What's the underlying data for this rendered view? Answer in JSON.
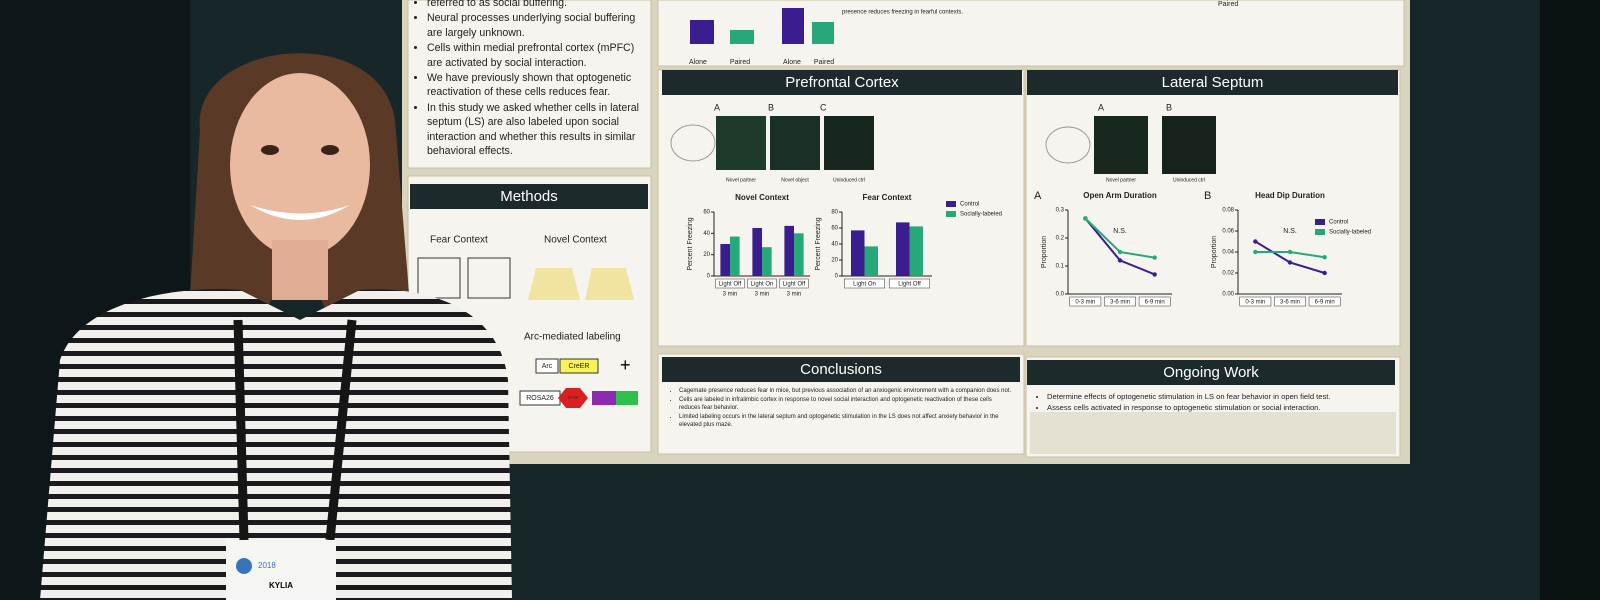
{
  "intro": {
    "bullets": [
      "referred to as social buffering.",
      "Neural processes underlying social buffering are largely unknown.",
      "Cells within medial prefrontal cortex (mPFC) are activated by social interaction.",
      "We have previously shown that optogenetic reactivation of these cells reduces fear.",
      "In this study we asked whether cells in lateral septum (LS) are also labeled upon social interaction and whether this results in similar behavioral effects."
    ]
  },
  "top_strip": {
    "group_labels": [
      "Alone",
      "Paired",
      "Alone",
      "Paired"
    ],
    "note": "presence reduces freezing in fearful contexts.",
    "legend": "Paired"
  },
  "methods": {
    "title": "Methods",
    "fear_context": "Fear Context",
    "novel_context": "Novel Context",
    "arc_labeling": "Arc-mediated labeling",
    "genes": [
      "Arc",
      "CreER",
      "ROSA26",
      "STOP"
    ]
  },
  "prefrontal": {
    "title": "Prefrontal Cortex",
    "panels": [
      "A",
      "B",
      "C"
    ],
    "captions": [
      "Novel partner",
      "Novel object",
      "Uninduced ctrl"
    ],
    "figures": [
      {
        "type": "bar",
        "title": "Novel Context",
        "y_label": "Percent Freezing",
        "categories": [
          "Light Off",
          "Light On",
          "Light Off"
        ],
        "sublabels": [
          "3 min",
          "3 min",
          "3 min"
        ],
        "ylim": [
          0,
          60
        ],
        "yticks": [
          0,
          20,
          40,
          60
        ],
        "series": [
          {
            "name": "Control",
            "color": "#3b1d8f",
            "values": [
              30,
              45,
              47
            ]
          },
          {
            "name": "Socially-labeled",
            "color": "#27a87a",
            "values": [
              37,
              27,
              40
            ]
          }
        ]
      },
      {
        "type": "bar",
        "title": "Fear Context",
        "y_label": "Percent Freezing",
        "categories": [
          "Light On",
          "Light Off"
        ],
        "ylim": [
          0,
          80
        ],
        "yticks": [
          0,
          20,
          40,
          60,
          80
        ],
        "series": [
          {
            "name": "Control",
            "color": "#3b1d8f",
            "values": [
              57,
              67
            ]
          },
          {
            "name": "Socially-labeled",
            "color": "#27a87a",
            "values": [
              37,
              62
            ]
          }
        ]
      }
    ]
  },
  "lateral": {
    "title": "Lateral Septum",
    "panels": [
      "A",
      "B"
    ],
    "captions": [
      "Novel partner",
      "Uninduced ctrl"
    ],
    "figures": [
      {
        "type": "line",
        "letter": "A",
        "title": "Open Arm Duration",
        "y_label": "Proportion",
        "annotation": "N.S.",
        "categories": [
          "0-3 min",
          "3-6 min",
          "6-9 min"
        ],
        "ylim": [
          0,
          0.3
        ],
        "yticks": [
          {
            "value": 0,
            "label": "0.0"
          },
          0.1,
          0.2,
          0.3
        ],
        "series": [
          {
            "name": "Control",
            "color": "#3b1d8f",
            "values": [
              0.27,
              0.12,
              0.07
            ]
          },
          {
            "name": "Socially-labeled",
            "color": "#27a87a",
            "values": [
              0.27,
              0.15,
              0.13
            ]
          }
        ]
      },
      {
        "type": "line",
        "letter": "B",
        "title": "Head Dip Duration",
        "y_label": "Proportion",
        "annotation": "N.S.",
        "categories": [
          "0-3 min",
          "3-6 min",
          "6-9 min"
        ],
        "ylim": [
          0,
          0.08
        ],
        "yticks": [
          {
            "value": 0,
            "label": "0.00"
          },
          0.02,
          0.04,
          0.06,
          0.08
        ],
        "series": [
          {
            "name": "Control",
            "color": "#3b1d8f",
            "values": [
              0.05,
              0.03,
              0.02
            ]
          },
          {
            "name": "Socially-labeled",
            "color": "#27a87a",
            "values": [
              0.04,
              0.04,
              0.035
            ]
          }
        ]
      }
    ]
  },
  "conclusions": {
    "title": "Conclusions",
    "bullets": [
      "Cagemate presence reduces fear in mice, but previous association of an anxiogenic environment with a companion does not.",
      "Cells are labeled in infralimbic cortex in response to novel social interaction and optogenetic reactivation of these cells reduces fear behavior.",
      "Limited labeling occurs in the lateral septum and optogenetic stimulation in the LS does not affect anxiety behavior in the elevated plus maze."
    ]
  },
  "ongoing": {
    "title": "Ongoing Work",
    "bullets": [
      "Determine effects of optogenetic stimulation in LS on fear behavior in open field test.",
      "Assess cells activated in response to optogenetic stimulation or social interaction."
    ]
  },
  "badge": {
    "name": "KYLIA",
    "year": "2018"
  }
}
